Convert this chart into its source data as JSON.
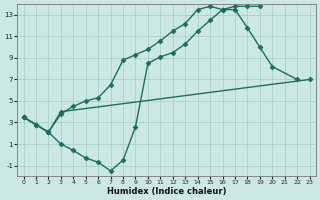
{
  "xlabel": "Humidex (Indice chaleur)",
  "bg_color": "#cce8e6",
  "grid_color": "#aacfcc",
  "line_color": "#1a6e60",
  "marker": "D",
  "markersize": 2.5,
  "linewidth": 1.0,
  "xlim": [
    -0.5,
    23.5
  ],
  "ylim": [
    -2.0,
    14.0
  ],
  "xticks": [
    0,
    1,
    2,
    3,
    4,
    5,
    6,
    7,
    8,
    9,
    10,
    11,
    12,
    13,
    14,
    15,
    16,
    17,
    18,
    19,
    20,
    21,
    22,
    23
  ],
  "yticks": [
    -1,
    1,
    3,
    5,
    7,
    9,
    11,
    13
  ],
  "line1_x": [
    0,
    1,
    2,
    3,
    4,
    5,
    6,
    7,
    8,
    9,
    10,
    11,
    12,
    13,
    14,
    15,
    16,
    17,
    18,
    19
  ],
  "line1_y": [
    3.5,
    2.8,
    2.1,
    1.0,
    0.4,
    -0.3,
    -0.7,
    -1.5,
    -0.5,
    2.6,
    8.5,
    9.1,
    9.5,
    10.3,
    11.5,
    12.5,
    13.5,
    13.8,
    13.8,
    13.8
  ],
  "line2_x": [
    0,
    1,
    2,
    3,
    4,
    5,
    6,
    7,
    8,
    9,
    10,
    11,
    12,
    13,
    14,
    15,
    16,
    17,
    18,
    19,
    20,
    22
  ],
  "line2_y": [
    3.5,
    2.8,
    2.1,
    3.8,
    4.5,
    5.0,
    5.3,
    6.5,
    8.8,
    9.3,
    9.8,
    10.6,
    11.5,
    12.2,
    13.5,
    13.8,
    13.5,
    13.5,
    11.8,
    10.0,
    8.2,
    7.0
  ],
  "line3_x": [
    0,
    1,
    2,
    3,
    23
  ],
  "line3_y": [
    3.5,
    2.8,
    2.1,
    4.0,
    7.0
  ]
}
